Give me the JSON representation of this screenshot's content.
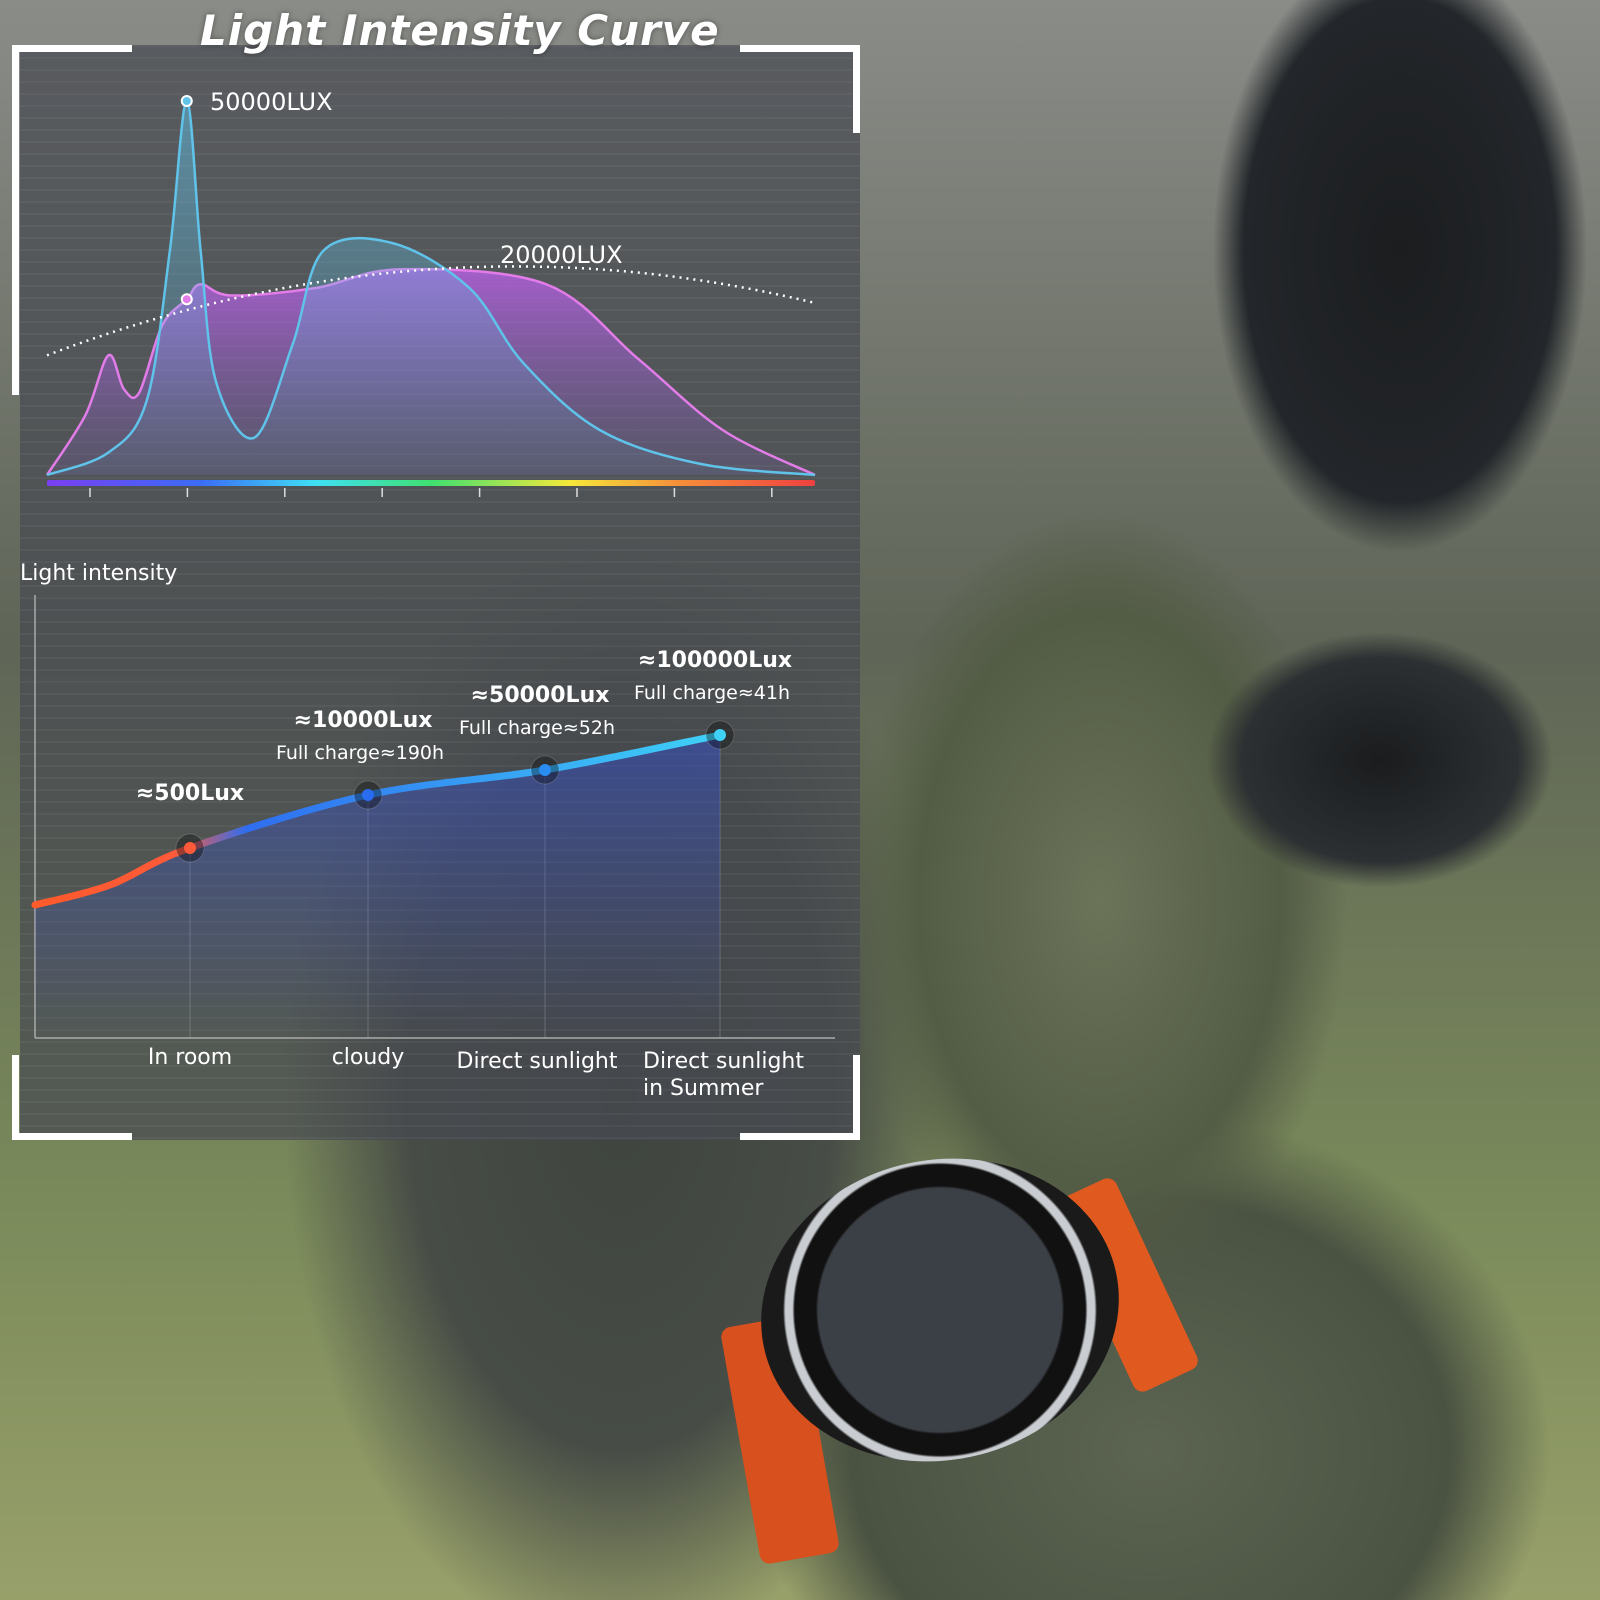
{
  "title": "Light Intensity Curve",
  "chart_data": [
    {
      "type": "area",
      "title": "Light Intensity Curve",
      "xlabel": "",
      "ylabel": "",
      "x_ticks": 8,
      "x_axis_style": "rainbow spectrum bar (violet to red)",
      "grid": false,
      "series": [
        {
          "color": "#5fc3ea",
          "points": [
            [
              0,
              0
            ],
            [
              8,
              6
            ],
            [
              13,
              20
            ],
            [
              16,
              60
            ],
            [
              18.2,
              100
            ],
            [
              20,
              60
            ],
            [
              22,
              25
            ],
            [
              27,
              10
            ],
            [
              32,
              35
            ],
            [
              36,
              60
            ],
            [
              45,
              62
            ],
            [
              55,
              50
            ],
            [
              62,
              30
            ],
            [
              72,
              12
            ],
            [
              85,
              3
            ],
            [
              100,
              0
            ]
          ]
        },
        {
          "color": "#e27ce8",
          "points": [
            [
              0,
              0
            ],
            [
              5,
              16
            ],
            [
              8,
              32
            ],
            [
              10,
              23
            ],
            [
              12,
              22
            ],
            [
              15,
              40
            ],
            [
              18.2,
              47
            ],
            [
              20,
              51
            ],
            [
              24,
              48
            ],
            [
              35,
              50
            ],
            [
              46,
              55
            ],
            [
              65,
              51
            ],
            [
              77,
              31
            ],
            [
              88,
              12
            ],
            [
              100,
              0
            ]
          ]
        }
      ],
      "reference_arc": {
        "style": "dotted",
        "color": "#ffffff",
        "points": [
          [
            0,
            32
          ],
          [
            50,
            55
          ],
          [
            100,
            46
          ]
        ]
      },
      "annotations": [
        {
          "text": "50000LUX",
          "x": 18.2,
          "y": 100
        },
        {
          "text": "20000LUX",
          "x": 60,
          "y": 56
        }
      ]
    },
    {
      "type": "line",
      "ylabel": "Light intensity",
      "categories": [
        "In room",
        "cloudy",
        "Direct sunlight",
        "Direct sunlight in Summer"
      ],
      "category_lines": [
        [
          "In room"
        ],
        [
          "cloudy"
        ],
        [
          "Direct sunlight"
        ],
        [
          "Direct sunlight",
          "in Summer"
        ]
      ],
      "values_lux": [
        500,
        10000,
        50000,
        100000
      ],
      "value_labels": [
        "≈500Lux",
        "≈10000Lux",
        "≈50000Lux",
        "≈100000Lux"
      ],
      "charge_labels": [
        "",
        "Full charge≈190h",
        "Full charge≈52h",
        "Full charge≈41h"
      ],
      "point_colors": [
        "#ff5a3a",
        "#2a6cf0",
        "#2a8cf0",
        "#3fd0f5"
      ],
      "line_gradient": [
        "#ff5a2a",
        "#2f6df0",
        "#3fd6f8"
      ]
    }
  ]
}
